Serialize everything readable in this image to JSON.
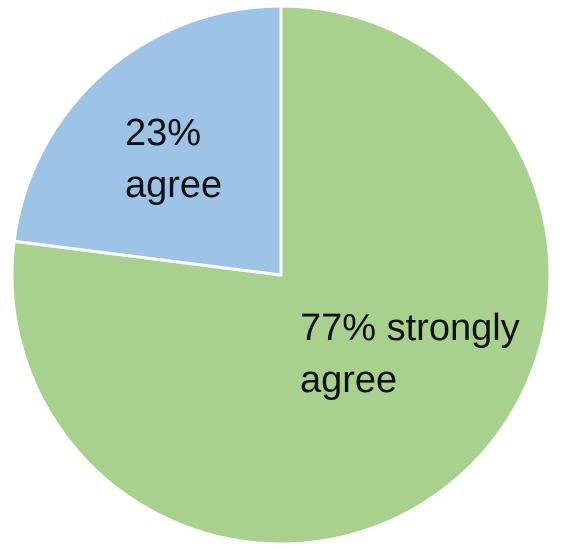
{
  "chart_data": {
    "type": "pie",
    "slices": [
      {
        "label": "strongly agree",
        "value": 77,
        "color": "#A9D18E",
        "label_lines": [
          "77% strongly",
          "agree"
        ]
      },
      {
        "label": "agree",
        "value": 23,
        "color": "#9DC3E6",
        "label_lines": [
          "23%",
          "agree"
        ]
      }
    ],
    "start_angle": "12 o'clock",
    "direction": "clockwise",
    "legend": "none"
  }
}
